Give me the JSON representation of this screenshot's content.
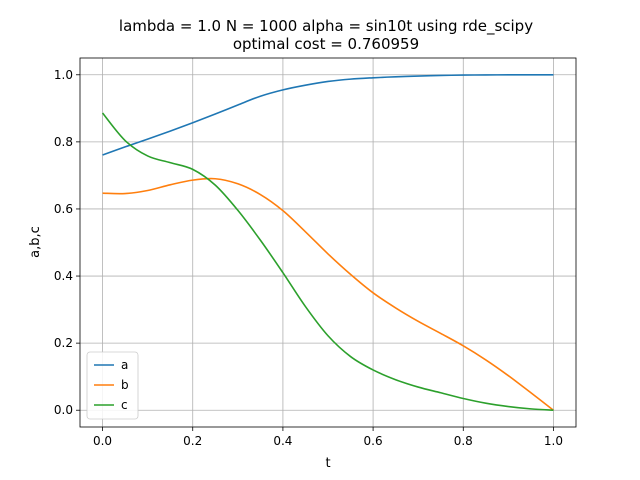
{
  "chart_data": {
    "type": "line",
    "title": "lambda = 1.0 N = 1000 alpha = sin10t using rde_scipy",
    "subtitle": "optimal cost = 0.760959",
    "xlabel": "t",
    "ylabel": "a,b,c",
    "xlim": [
      -0.05,
      1.05
    ],
    "ylim": [
      -0.05,
      1.05
    ],
    "x_ticks": [
      "0.0",
      "0.2",
      "0.4",
      "0.6",
      "0.8",
      "1.0"
    ],
    "y_ticks": [
      "0.0",
      "0.2",
      "0.4",
      "0.6",
      "0.8",
      "1.0"
    ],
    "grid": true,
    "legend_position": "lower-left",
    "x": [
      0.0,
      0.05,
      0.1,
      0.15,
      0.2,
      0.25,
      0.3,
      0.35,
      0.4,
      0.45,
      0.5,
      0.55,
      0.6,
      0.65,
      0.7,
      0.75,
      0.8,
      0.85,
      0.9,
      0.95,
      1.0
    ],
    "series": [
      {
        "name": "a",
        "color": "#1f77b4",
        "values": [
          0.761,
          0.785,
          0.808,
          0.832,
          0.857,
          0.883,
          0.91,
          0.936,
          0.955,
          0.969,
          0.98,
          0.987,
          0.991,
          0.994,
          0.996,
          0.998,
          0.999,
          0.9995,
          0.9998,
          0.9999,
          1.0
        ]
      },
      {
        "name": "b",
        "color": "#ff7f0e",
        "values": [
          0.647,
          0.646,
          0.655,
          0.672,
          0.686,
          0.69,
          0.675,
          0.643,
          0.595,
          0.532,
          0.466,
          0.405,
          0.35,
          0.305,
          0.265,
          0.229,
          0.192,
          0.15,
          0.103,
          0.052,
          0.0
        ]
      },
      {
        "name": "c",
        "color": "#2ca02c",
        "values": [
          0.886,
          0.804,
          0.758,
          0.738,
          0.718,
          0.671,
          0.596,
          0.507,
          0.41,
          0.309,
          0.222,
          0.16,
          0.12,
          0.091,
          0.069,
          0.052,
          0.035,
          0.021,
          0.011,
          0.004,
          0.0
        ]
      }
    ]
  }
}
